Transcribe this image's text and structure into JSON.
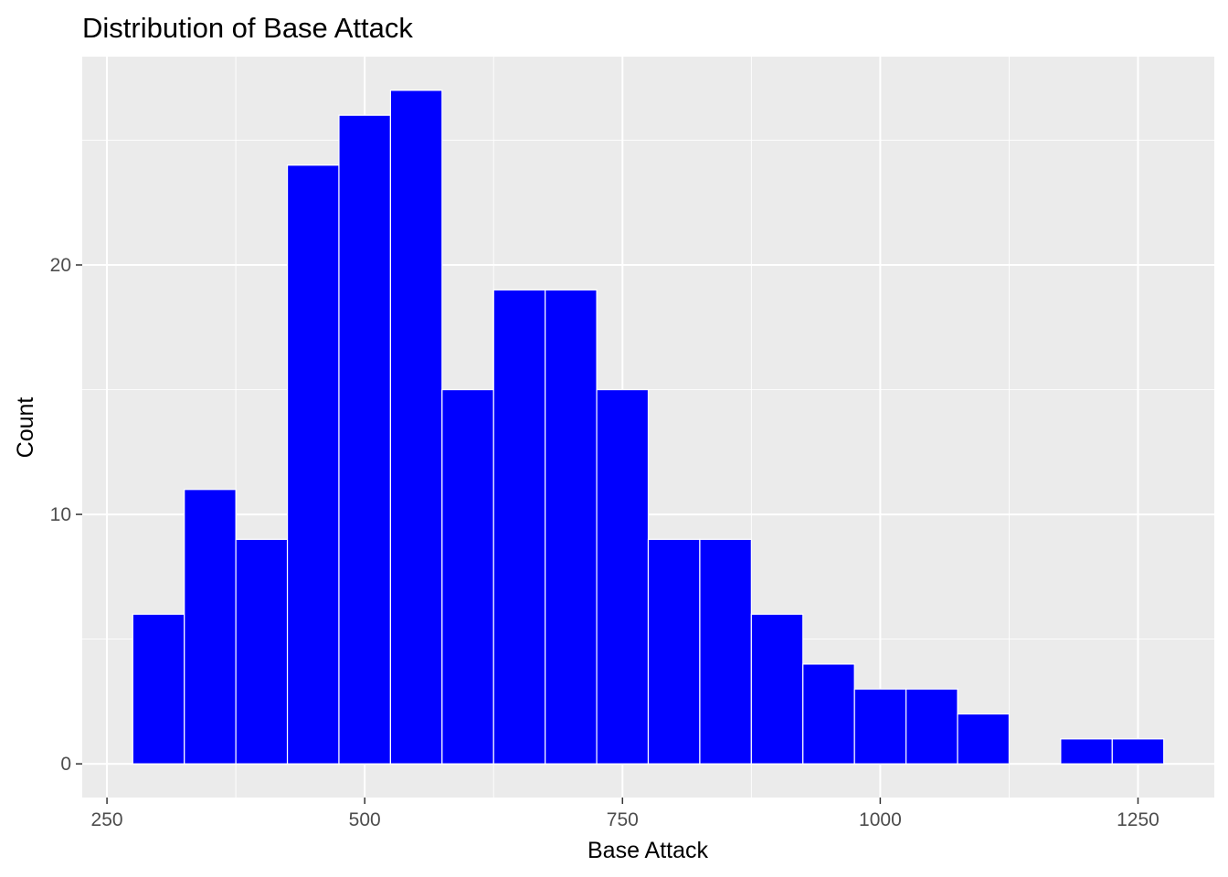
{
  "chart_data": {
    "type": "bar",
    "subtype": "histogram",
    "title": "Distribution of Base Attack",
    "xlabel": "Base Attack",
    "ylabel": "Count",
    "bin_width": 50,
    "bins": [
      {
        "start": 275,
        "end": 325,
        "count": 6
      },
      {
        "start": 325,
        "end": 375,
        "count": 11
      },
      {
        "start": 375,
        "end": 425,
        "count": 9
      },
      {
        "start": 425,
        "end": 475,
        "count": 24
      },
      {
        "start": 475,
        "end": 525,
        "count": 26
      },
      {
        "start": 525,
        "end": 575,
        "count": 27
      },
      {
        "start": 575,
        "end": 625,
        "count": 15
      },
      {
        "start": 625,
        "end": 675,
        "count": 19
      },
      {
        "start": 675,
        "end": 725,
        "count": 19
      },
      {
        "start": 725,
        "end": 775,
        "count": 15
      },
      {
        "start": 775,
        "end": 825,
        "count": 9
      },
      {
        "start": 825,
        "end": 875,
        "count": 9
      },
      {
        "start": 875,
        "end": 925,
        "count": 6
      },
      {
        "start": 925,
        "end": 975,
        "count": 4
      },
      {
        "start": 975,
        "end": 1025,
        "count": 3
      },
      {
        "start": 1025,
        "end": 1075,
        "count": 3
      },
      {
        "start": 1075,
        "end": 1125,
        "count": 2
      },
      {
        "start": 1125,
        "end": 1175,
        "count": 0
      },
      {
        "start": 1175,
        "end": 1225,
        "count": 1
      },
      {
        "start": 1225,
        "end": 1275,
        "count": 1
      }
    ],
    "xlim": [
      226,
      1324
    ],
    "ylim": [
      -1.35,
      28.35
    ],
    "x_ticks": [
      250,
      500,
      750,
      1000,
      1250
    ],
    "x_tick_labels": [
      "250",
      "500",
      "750",
      "1000",
      "1250"
    ],
    "y_ticks": [
      0,
      10,
      20
    ],
    "y_tick_labels": [
      "0",
      "10",
      "20"
    ],
    "grid": true,
    "legend": "none",
    "colors": {
      "bar_fill": "#0000ff",
      "bar_outline": "#ffffff",
      "panel_background": "#ebebeb",
      "grid_major": "#ffffff",
      "tick_text": "#4d4d4d",
      "axis_title": "#000000"
    }
  }
}
